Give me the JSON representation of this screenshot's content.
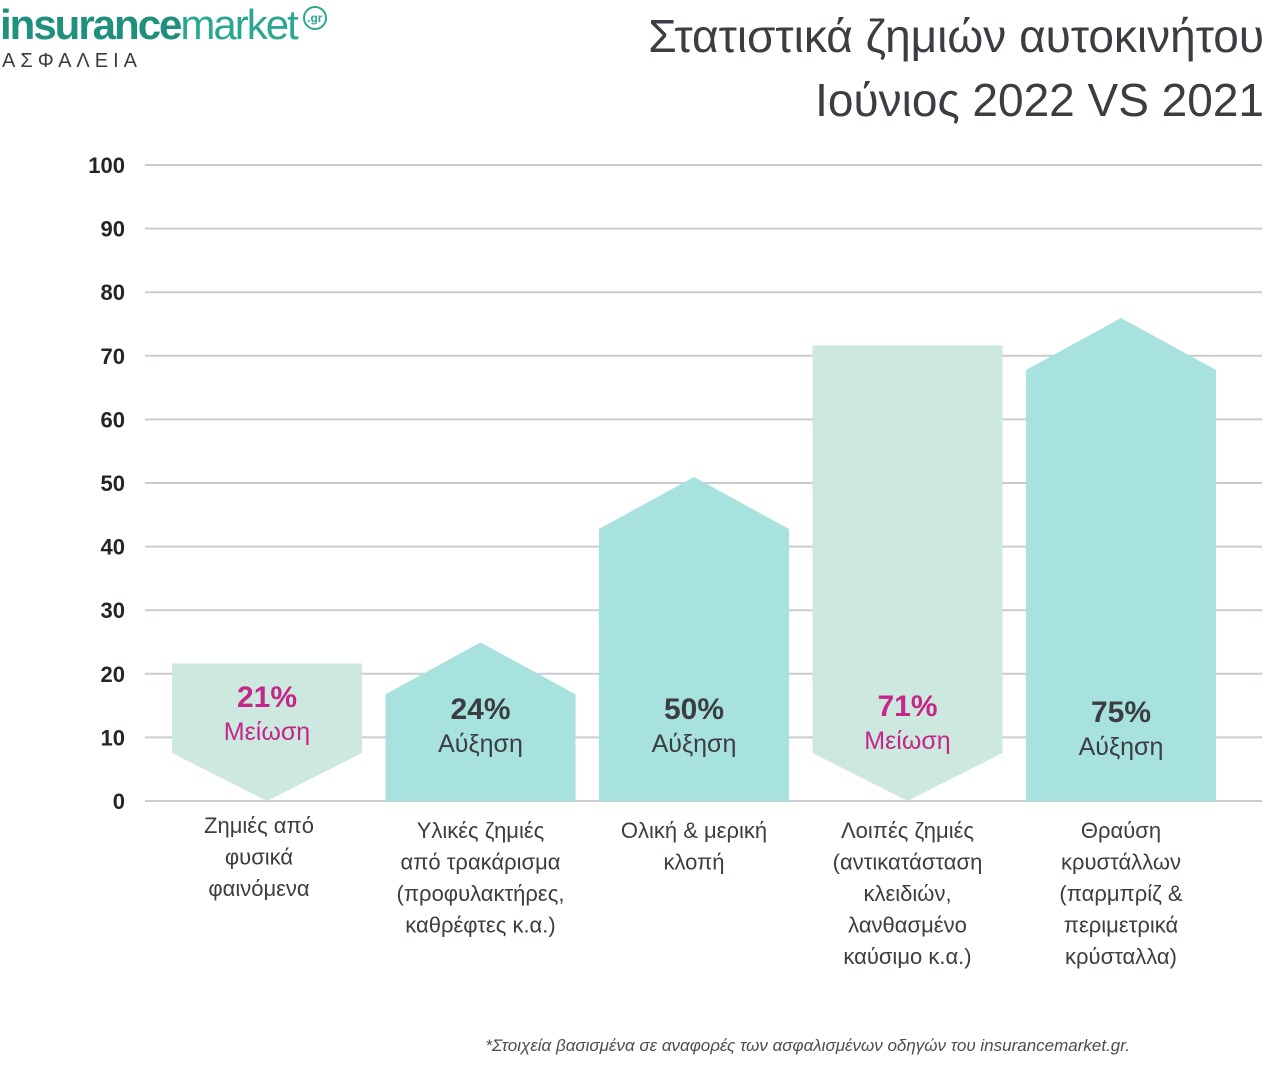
{
  "brand": {
    "name_bold": "insurance",
    "name_light": "market",
    "tld": ".gr",
    "tagline": "ΑΣΦΑΛΕΙΑ"
  },
  "colors": {
    "increase": "#a8e2de",
    "decrease": "#cde9df",
    "decrease_text": "#c4268a",
    "increase_text": "#3a3d42",
    "grid": "#c9ccd2"
  },
  "footnote": "*Στοιχεία βασισμένα σε αναφορές των ασφαλισμένων οδηγών του insurancemarket.gr.",
  "chart_data": {
    "type": "bar",
    "title": "Στατιστικά ζημιών αυτοκινήτου",
    "subtitle": "Ιούνιος 2022 VS 2021",
    "ylim": [
      0,
      100
    ],
    "yticks": [
      0,
      10,
      20,
      30,
      40,
      50,
      60,
      70,
      80,
      90,
      100
    ],
    "grid": true,
    "categories": [
      [
        "Ζημιές από",
        "φυσικά",
        "φαινόμενα"
      ],
      [
        "Υλικές ζημιές",
        "από τρακάρισμα",
        "(προφυλακτήρες,",
        "καθρέφτες κ.α.)"
      ],
      [
        "Ολική & μερική",
        "κλοπή"
      ],
      [
        "Λοιπές ζημιές",
        "(αντικατάσταση",
        "κλειδιών,",
        "λανθασμένο",
        "καύσιμο κ.α.)"
      ],
      [
        "Θραύση",
        "κρυστάλλων",
        "(παρμπρίζ &",
        "περιμετρικά",
        "κρύσταλλα)"
      ]
    ],
    "values": [
      21,
      24,
      50,
      71,
      75
    ],
    "value_labels": [
      "21%",
      "24%",
      "50%",
      "71%",
      "75%"
    ],
    "directions": [
      "decrease",
      "increase",
      "increase",
      "decrease",
      "increase"
    ],
    "direction_labels": [
      "Μείωση",
      "Αύξηση",
      "Αύξηση",
      "Μείωση",
      "Αύξηση"
    ]
  }
}
